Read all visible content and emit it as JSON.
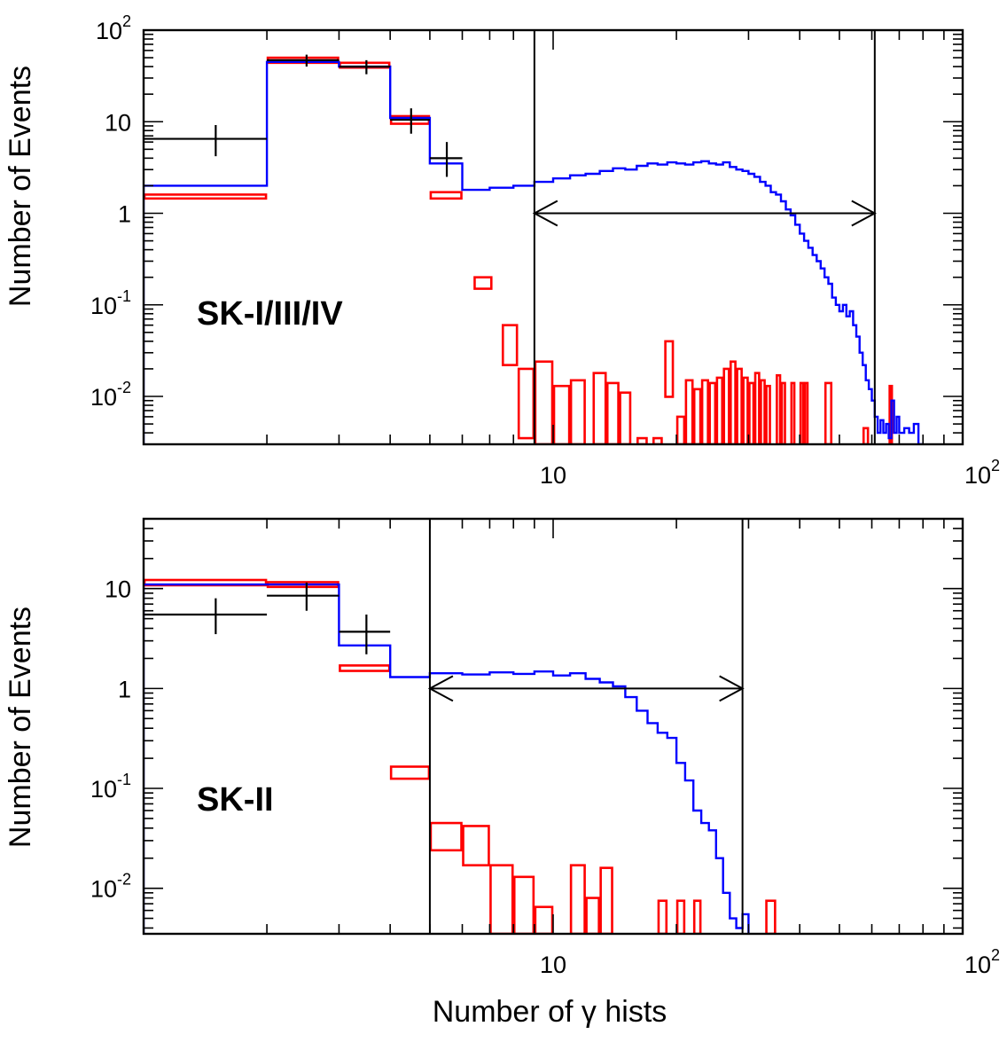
{
  "chart_data": [
    {
      "type": "histogram",
      "panel_label": "SK-I/III/IV",
      "ylabel": "Number of Events",
      "xscale": "log",
      "yscale": "log",
      "xlim": [
        1.0,
        100
      ],
      "ylim": [
        0.003,
        100
      ],
      "x_tick_labels": [
        "10",
        "10^2"
      ],
      "y_tick_labels": [
        "10^-2",
        "10^-1",
        "1",
        "10",
        "10^2"
      ],
      "cut_window": [
        9,
        61
      ],
      "series": [
        {
          "kind": "data",
          "color": "#000000",
          "points": [
            {
              "x": 1.5,
              "y": 6.5,
              "x_lo": 1.0,
              "x_hi": 2.0,
              "y_lo": 4.2,
              "y_hi": 9.2
            },
            {
              "x": 2.5,
              "y": 47,
              "x_lo": 2.0,
              "x_hi": 3.0,
              "y_lo": 40,
              "y_hi": 54
            },
            {
              "x": 3.5,
              "y": 40,
              "x_lo": 3.0,
              "x_hi": 4.0,
              "y_lo": 33,
              "y_hi": 47
            },
            {
              "x": 4.5,
              "y": 10.5,
              "x_lo": 4.0,
              "x_hi": 5.0,
              "y_lo": 7.4,
              "y_hi": 14
            },
            {
              "x": 5.5,
              "y": 4.0,
              "x_lo": 5.0,
              "x_hi": 6.0,
              "y_lo": 2.5,
              "y_hi": 6
            }
          ]
        },
        {
          "kind": "mc",
          "color": "#0000ff",
          "edges": [
            1.0,
            2.0,
            3.0,
            4.0,
            5.0,
            6.0,
            7.0,
            8.0,
            9.0,
            10.0,
            11.0,
            12.0,
            13.0,
            14.0,
            15.0,
            16.0,
            17.0,
            18.0,
            19.0,
            20.0,
            21.0,
            22.0,
            23.0,
            24.0,
            25.0,
            26.0,
            27.0,
            28.0,
            29.0,
            30.0,
            31.0,
            32.0,
            33.0,
            34.0,
            35.0,
            36.0,
            37.0,
            38.0,
            39.0,
            40.0,
            41.0,
            42.0,
            43.0,
            44.0,
            45.0,
            46.0,
            47.0,
            48.0,
            49.0,
            50.0,
            51.0,
            52.0,
            53.0,
            54.0,
            55.0,
            56.0,
            57.0,
            58.0,
            59.0,
            60.0,
            61.0,
            62.0,
            63.0,
            64.0,
            65.0,
            66.0,
            67.0,
            68.0,
            69.0,
            70.0,
            72.0,
            74.0,
            76.0,
            78.0,
            80.0
          ],
          "values": [
            2.0,
            45.0,
            40.0,
            11.0,
            3.5,
            1.8,
            1.9,
            2.0,
            2.2,
            2.4,
            2.6,
            2.7,
            2.9,
            3.1,
            3.0,
            3.3,
            3.5,
            3.4,
            3.6,
            3.5,
            3.4,
            3.6,
            3.7,
            3.5,
            3.4,
            3.6,
            3.2,
            3.0,
            2.9,
            2.7,
            2.5,
            2.2,
            2.0,
            1.7,
            1.6,
            1.35,
            1.1,
            0.95,
            0.75,
            0.6,
            0.5,
            0.42,
            0.35,
            0.3,
            0.25,
            0.2,
            0.17,
            0.12,
            0.1,
            0.085,
            0.1,
            0.075,
            0.085,
            0.06,
            0.045,
            0.03,
            0.022,
            0.015,
            0.012,
            0.009,
            0.006,
            0.004,
            0.0055,
            0.004,
            0.005,
            0.0035,
            0.009,
            0.004,
            0.006,
            0.004,
            0.0045,
            0.004,
            0.005,
            0.003
          ]
        },
        {
          "kind": "mc-error-boxes",
          "color": "#ff0000",
          "boxes": [
            {
              "x_lo": 1.0,
              "x_hi": 2.0,
              "y_lo": 1.45,
              "y_hi": 1.6
            },
            {
              "x_lo": 2.0,
              "x_hi": 3.0,
              "y_lo": 44,
              "y_hi": 50
            },
            {
              "x_lo": 3.0,
              "x_hi": 4.0,
              "y_lo": 39,
              "y_hi": 44
            },
            {
              "x_lo": 4.0,
              "x_hi": 5.0,
              "y_lo": 9.5,
              "y_hi": 11.5
            },
            {
              "x_lo": 5.0,
              "x_hi": 6.0,
              "y_lo": 1.45,
              "y_hi": 1.7
            },
            {
              "x_lo": 6.4,
              "x_hi": 7.1,
              "y_lo": 0.15,
              "y_hi": 0.2
            },
            {
              "x_lo": 7.5,
              "x_hi": 8.2,
              "y_lo": 0.022,
              "y_hi": 0.06
            },
            {
              "x_lo": 8.2,
              "x_hi": 9.0,
              "y_lo": 0.0035,
              "y_hi": 0.02
            },
            {
              "x_lo": 9.0,
              "x_hi": 10.0,
              "y_lo": 0.003,
              "y_hi": 0.024
            },
            {
              "x_lo": 10.0,
              "x_hi": 11.0,
              "y_lo": 0.003,
              "y_hi": 0.013
            },
            {
              "x_lo": 11.0,
              "x_hi": 12.0,
              "y_lo": 0.003,
              "y_hi": 0.015
            },
            {
              "x_lo": 12.5,
              "x_hi": 13.5,
              "y_lo": 0.003,
              "y_hi": 0.018
            },
            {
              "x_lo": 13.5,
              "x_hi": 14.5,
              "y_lo": 0.003,
              "y_hi": 0.014
            },
            {
              "x_lo": 14.5,
              "x_hi": 15.5,
              "y_lo": 0.003,
              "y_hi": 0.011
            },
            {
              "x_lo": 16.0,
              "x_hi": 17.0,
              "y_lo": 0.003,
              "y_hi": 0.0035
            },
            {
              "x_lo": 17.5,
              "x_hi": 18.5,
              "y_lo": 0.003,
              "y_hi": 0.0035
            },
            {
              "x_lo": 18.7,
              "x_hi": 19.7,
              "y_lo": 0.0099,
              "y_hi": 0.04
            },
            {
              "x_lo": 20.0,
              "x_hi": 21.0,
              "y_lo": 0.003,
              "y_hi": 0.006
            },
            {
              "x_lo": 21.0,
              "x_hi": 22.0,
              "y_lo": 0.003,
              "y_hi": 0.015
            },
            {
              "x_lo": 22.0,
              "x_hi": 23.0,
              "y_lo": 0.003,
              "y_hi": 0.012
            },
            {
              "x_lo": 23.0,
              "x_hi": 24.0,
              "y_lo": 0.003,
              "y_hi": 0.015
            },
            {
              "x_lo": 24.0,
              "x_hi": 25.0,
              "y_lo": 0.003,
              "y_hi": 0.014
            },
            {
              "x_lo": 25.0,
              "x_hi": 26.0,
              "y_lo": 0.003,
              "y_hi": 0.016
            },
            {
              "x_lo": 26.0,
              "x_hi": 27.0,
              "y_lo": 0.003,
              "y_hi": 0.02
            },
            {
              "x_lo": 27.0,
              "x_hi": 28.0,
              "y_lo": 0.003,
              "y_hi": 0.024
            },
            {
              "x_lo": 28.0,
              "x_hi": 29.0,
              "y_lo": 0.003,
              "y_hi": 0.02
            },
            {
              "x_lo": 29.0,
              "x_hi": 30.0,
              "y_lo": 0.003,
              "y_hi": 0.016
            },
            {
              "x_lo": 30.0,
              "x_hi": 31.0,
              "y_lo": 0.003,
              "y_hi": 0.014
            },
            {
              "x_lo": 31.0,
              "x_hi": 32.0,
              "y_lo": 0.003,
              "y_hi": 0.018
            },
            {
              "x_lo": 32.0,
              "x_hi": 33.0,
              "y_lo": 0.003,
              "y_hi": 0.015
            },
            {
              "x_lo": 33.0,
              "x_hi": 34.0,
              "y_lo": 0.003,
              "y_hi": 0.013
            },
            {
              "x_lo": 35.0,
              "x_hi": 36.0,
              "y_lo": 0.003,
              "y_hi": 0.017
            },
            {
              "x_lo": 36.0,
              "x_hi": 37.0,
              "y_lo": 0.003,
              "y_hi": 0.014
            },
            {
              "x_lo": 38.0,
              "x_hi": 39.0,
              "y_lo": 0.003,
              "y_hi": 0.014
            },
            {
              "x_lo": 40.0,
              "x_hi": 41.0,
              "y_lo": 0.003,
              "y_hi": 0.014
            },
            {
              "x_lo": 41.0,
              "x_hi": 42.0,
              "y_lo": 0.003,
              "y_hi": 0.014
            },
            {
              "x_lo": 46.0,
              "x_hi": 48.0,
              "y_lo": 0.003,
              "y_hi": 0.014
            },
            {
              "x_lo": 57.0,
              "x_hi": 59.0,
              "y_lo": 0.003,
              "y_hi": 0.0045
            },
            {
              "x_lo": 66.0,
              "x_hi": 67.5,
              "y_lo": 0.003,
              "y_hi": 0.013
            }
          ]
        }
      ]
    },
    {
      "type": "histogram",
      "panel_label": "SK-II",
      "ylabel": "Number of Events",
      "xlabel": "Number of γ hists",
      "xscale": "log",
      "yscale": "log",
      "xlim": [
        1.0,
        100
      ],
      "ylim": [
        0.0035,
        50
      ],
      "x_tick_labels": [
        "10",
        "10^2"
      ],
      "y_tick_labels": [
        "10^-2",
        "10^-1",
        "1",
        "10"
      ],
      "cut_window": [
        5,
        29
      ],
      "series": [
        {
          "kind": "data",
          "color": "#000000",
          "points": [
            {
              "x": 1.5,
              "y": 5.5,
              "x_lo": 1.0,
              "x_hi": 2.0,
              "y_lo": 3.5,
              "y_hi": 8
            },
            {
              "x": 2.5,
              "y": 8.5,
              "x_lo": 2.0,
              "x_hi": 3.0,
              "y_lo": 6,
              "y_hi": 11.5
            },
            {
              "x": 3.5,
              "y": 3.7,
              "x_lo": 3.0,
              "x_hi": 4.0,
              "y_lo": 2.2,
              "y_hi": 5.5
            }
          ]
        },
        {
          "kind": "mc",
          "color": "#0000ff",
          "edges": [
            1.0,
            2.0,
            3.0,
            4.0,
            5.0,
            6.0,
            7.0,
            8.0,
            9.0,
            10.0,
            11.0,
            12.0,
            13.0,
            14.0,
            15.0,
            16.0,
            17.0,
            18.0,
            19.0,
            20.0,
            21.0,
            22.0,
            23.0,
            24.0,
            25.0,
            26.0,
            27.0,
            28.0,
            29.0,
            30.0
          ],
          "values": [
            11.0,
            11.0,
            2.7,
            1.3,
            1.42,
            1.38,
            1.45,
            1.4,
            1.48,
            1.35,
            1.42,
            1.25,
            1.15,
            1.05,
            0.82,
            0.6,
            0.45,
            0.36,
            0.32,
            0.18,
            0.12,
            0.06,
            0.045,
            0.038,
            0.02,
            0.009,
            0.005,
            0.004,
            0.0055
          ]
        },
        {
          "kind": "mc-error-boxes",
          "color": "#ff0000",
          "boxes": [
            {
              "x_lo": 1.0,
              "x_hi": 2.0,
              "y_lo": 10.8,
              "y_hi": 12.2
            },
            {
              "x_lo": 2.0,
              "x_hi": 3.0,
              "y_lo": 10.4,
              "y_hi": 11.6
            },
            {
              "x_lo": 3.0,
              "x_hi": 4.0,
              "y_lo": 1.5,
              "y_hi": 1.7
            },
            {
              "x_lo": 4.0,
              "x_hi": 5.0,
              "y_lo": 0.125,
              "y_hi": 0.165
            },
            {
              "x_lo": 5.0,
              "x_hi": 6.0,
              "y_lo": 0.024,
              "y_hi": 0.045
            },
            {
              "x_lo": 6.0,
              "x_hi": 7.0,
              "y_lo": 0.017,
              "y_hi": 0.042
            },
            {
              "x_lo": 7.0,
              "x_hi": 8.0,
              "y_lo": 0.0035,
              "y_hi": 0.017
            },
            {
              "x_lo": 8.0,
              "x_hi": 9.0,
              "y_lo": 0.0035,
              "y_hi": 0.013
            },
            {
              "x_lo": 9.0,
              "x_hi": 10.0,
              "y_lo": 0.0035,
              "y_hi": 0.0065
            },
            {
              "x_lo": 11.0,
              "x_hi": 12.0,
              "y_lo": 0.0035,
              "y_hi": 0.017
            },
            {
              "x_lo": 12.0,
              "x_hi": 13.0,
              "y_lo": 0.0035,
              "y_hi": 0.008
            },
            {
              "x_lo": 13.0,
              "x_hi": 14.0,
              "y_lo": 0.0035,
              "y_hi": 0.016
            },
            {
              "x_lo": 18.0,
              "x_hi": 19.0,
              "y_lo": 0.0035,
              "y_hi": 0.0075
            },
            {
              "x_lo": 20.0,
              "x_hi": 21.0,
              "y_lo": 0.0035,
              "y_hi": 0.0075
            },
            {
              "x_lo": 22.0,
              "x_hi": 23.0,
              "y_lo": 0.0035,
              "y_hi": 0.0075
            },
            {
              "x_lo": 33.0,
              "x_hi": 35.0,
              "y_lo": 0.0035,
              "y_hi": 0.0075
            }
          ]
        }
      ]
    }
  ]
}
